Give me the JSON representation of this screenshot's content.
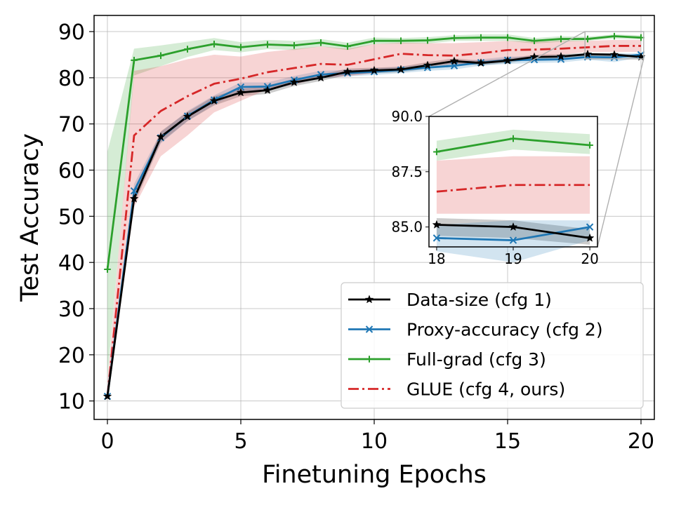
{
  "chart_data": {
    "type": "line",
    "xlabel": "Finetuning Epochs",
    "ylabel": "Test Accuracy",
    "xlim": [
      -0.5,
      20.5
    ],
    "ylim": [
      6,
      93.5
    ],
    "xticks": [
      0,
      5,
      10,
      15,
      20
    ],
    "yticks": [
      10,
      20,
      30,
      40,
      50,
      60,
      70,
      80,
      90
    ],
    "grid": true,
    "legend_position": "bottom-right",
    "x": [
      0,
      1,
      2,
      3,
      4,
      5,
      6,
      7,
      8,
      9,
      10,
      11,
      12,
      13,
      14,
      15,
      16,
      17,
      18,
      19,
      20
    ],
    "series": [
      {
        "name": "Data-size (cfg 1)",
        "color": "#000000",
        "marker": "star",
        "linestyle": "solid",
        "values": [
          11,
          53.8,
          67.2,
          71.6,
          75,
          76.8,
          77.3,
          79,
          80,
          81.3,
          81.6,
          81.8,
          82.7,
          83.6,
          83.2,
          83.7,
          84.5,
          84.6,
          85.1,
          85,
          84.5
        ],
        "band_lower": [
          10.5,
          52.5,
          66,
          70.6,
          74,
          76,
          76.5,
          78.2,
          79.3,
          80.6,
          81,
          81.2,
          82,
          83,
          82.7,
          83.2,
          84,
          84.1,
          84.6,
          84.5,
          84.2
        ],
        "band_upper": [
          11.5,
          55,
          68.4,
          72.6,
          76,
          77.6,
          78.1,
          79.8,
          80.7,
          82,
          82.2,
          82.4,
          83.4,
          84.2,
          83.7,
          84.2,
          85,
          85.1,
          85.4,
          85.3,
          84.9
        ]
      },
      {
        "name": "Proxy-accuracy (cfg 2)",
        "color": "#1f77b4",
        "marker": "x",
        "linestyle": "solid",
        "values": [
          11,
          55.5,
          67,
          71.7,
          75.2,
          78,
          78.1,
          79.5,
          80.7,
          81,
          81.3,
          81.7,
          82.2,
          82.6,
          83.3,
          83.8,
          83.9,
          84,
          84.5,
          84.4,
          85
        ],
        "band_lower": [
          10.5,
          54,
          65.8,
          70.6,
          74.2,
          77,
          77.2,
          78.6,
          79.9,
          80.3,
          80.6,
          81,
          81.5,
          81.8,
          82.6,
          83,
          83.2,
          83.3,
          83.9,
          83.4,
          84.4
        ],
        "band_upper": [
          11.5,
          57,
          68.2,
          72.8,
          76.2,
          79,
          79,
          80.4,
          81.5,
          81.7,
          82,
          82.4,
          82.9,
          83.4,
          84,
          84.6,
          84.6,
          84.7,
          85.1,
          85.3,
          85.3
        ]
      },
      {
        "name": "Full-grad (cfg 3)",
        "color": "#2ca02c",
        "marker": "plus",
        "linestyle": "solid",
        "values": [
          38.5,
          83.8,
          84.8,
          86.2,
          87.3,
          86.6,
          87.2,
          87,
          87.6,
          86.8,
          88,
          88,
          88.1,
          88.6,
          88.7,
          88.7,
          88,
          88.4,
          88.4,
          89,
          88.7
        ],
        "band_lower": [
          15,
          80.5,
          82.5,
          84.5,
          86,
          85.5,
          86.2,
          86,
          86.8,
          86,
          87.3,
          87.4,
          87.4,
          88,
          88,
          88,
          87.4,
          87.8,
          88,
          88.5,
          88.3
        ],
        "band_upper": [
          64,
          86.3,
          87,
          87.8,
          88.6,
          87.7,
          88.2,
          88,
          88.4,
          87.6,
          88.7,
          88.6,
          88.8,
          89.2,
          89.4,
          89.4,
          88.6,
          89,
          88.9,
          89.4,
          89.2
        ]
      },
      {
        "name": "GLUE (cfg 4, ours)",
        "color": "#d62728",
        "marker": "none",
        "linestyle": "dashdot",
        "values": [
          11,
          67.5,
          72.8,
          76,
          78.7,
          79.8,
          81.2,
          82.1,
          83,
          82.8,
          84,
          85.2,
          84.9,
          84.8,
          85.3,
          86,
          86.1,
          86.3,
          86.6,
          86.9,
          86.9
        ],
        "band_lower": [
          10,
          52,
          63,
          67.5,
          72.5,
          75,
          77.5,
          78.5,
          80,
          80.3,
          81,
          82.2,
          82.5,
          83,
          83.2,
          84,
          84.5,
          85,
          85.6,
          85.6,
          85.6
        ],
        "band_upper": [
          14,
          81.5,
          82.5,
          84,
          85,
          84.6,
          85.6,
          86.2,
          86.8,
          86.3,
          87.3,
          87.6,
          87.5,
          87.5,
          87.7,
          88,
          87.8,
          88,
          88,
          88.2,
          88.2
        ]
      }
    ],
    "inset": {
      "xlim": [
        17.9,
        20.1
      ],
      "ylim": [
        84.1,
        90.0
      ],
      "xticks": [
        18,
        19,
        20
      ],
      "ytick_labels": [
        "90.0",
        "87.5",
        "85.0"
      ],
      "ytick_values": [
        90.0,
        87.5,
        85.0
      ],
      "grid": false
    }
  }
}
